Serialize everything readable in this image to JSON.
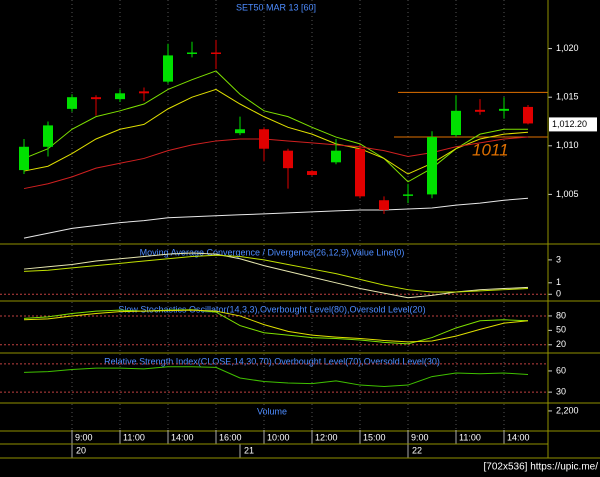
{
  "chart_data": [
    {
      "type": "candlestick",
      "title": "SET50 MAR 13  [60]",
      "open": [
        1007.5,
        1009.9,
        1013.8,
        1015.0,
        1014.8,
        1015.6,
        1016.6,
        1019.5,
        1019.6,
        1011.3,
        1011.7,
        1009.5,
        1007.4,
        1008.3,
        1009.7,
        1004.4,
        1005.0,
        1005.0,
        1011.1,
        1013.7,
        1013.6,
        1014.0
      ],
      "high": [
        1010.7,
        1012.5,
        1015.3,
        1015.2,
        1015.8,
        1016.0,
        1020.5,
        1020.7,
        1020.9,
        1013.0,
        1011.9,
        1009.7,
        1007.5,
        1010.7,
        1010.1,
        1004.8,
        1006.1,
        1011.5,
        1015.2,
        1014.8,
        1015.0,
        1014.2
      ],
      "low": [
        1007.1,
        1008.9,
        1013.5,
        1013.1,
        1014.5,
        1014.6,
        1016.4,
        1019.1,
        1017.9,
        1011.1,
        1008.4,
        1005.6,
        1006.9,
        1008.1,
        1004.6,
        1003.0,
        1004.1,
        1004.6,
        1010.9,
        1013.2,
        1012.8,
        1012.2
      ],
      "close": [
        1009.9,
        1012.1,
        1015.0,
        1014.8,
        1015.4,
        1015.4,
        1019.3,
        1019.6,
        1019.5,
        1011.7,
        1009.7,
        1007.7,
        1007.0,
        1009.5,
        1004.8,
        1003.4,
        1005.0,
        1010.9,
        1013.6,
        1013.5,
        1013.8,
        1012.3
      ],
      "up_color": "#00e000",
      "down_color": "#e00000",
      "series": [
        {
          "color": "#7ee000",
          "values": [
            1008.7,
            1009.7,
            1011.7,
            1013.0,
            1013.6,
            1014.3,
            1015.8,
            1016.8,
            1017.7,
            1015.3,
            1013.6,
            1013.0,
            1011.9,
            1010.9,
            1010.2,
            1008.7,
            1006.3,
            1007.7,
            1009.7,
            1011.2,
            1011.7,
            1011.7
          ]
        },
        {
          "color": "#e0e000",
          "values": [
            1007.4,
            1007.9,
            1009.2,
            1010.7,
            1011.7,
            1012.2,
            1013.8,
            1015.0,
            1015.8,
            1014.3,
            1013.0,
            1011.9,
            1011.2,
            1010.2,
            1009.7,
            1008.7,
            1007.1,
            1008.2,
            1009.7,
            1010.7,
            1011.2,
            1011.4
          ]
        },
        {
          "color": "#d02020",
          "values": [
            1005.6,
            1006.1,
            1006.8,
            1007.7,
            1008.2,
            1008.7,
            1009.5,
            1010.1,
            1010.5,
            1010.7,
            1010.7,
            1010.5,
            1010.3,
            1010.1,
            1009.9,
            1009.5,
            1008.9,
            1009.3,
            1009.9,
            1010.3,
            1010.7,
            1010.9
          ]
        },
        {
          "color": "#e8e8e8",
          "values": [
            1000.5,
            1001.0,
            1001.5,
            1001.8,
            1002.1,
            1002.3,
            1002.6,
            1002.7,
            1002.8,
            1002.9,
            1003.0,
            1003.1,
            1003.2,
            1003.3,
            1003.4,
            1003.4,
            1003.5,
            1003.6,
            1003.9,
            1004.1,
            1004.4,
            1004.6
          ]
        }
      ],
      "hlines": [
        1015.5,
        1010.9
      ],
      "hline_color": "#e07000",
      "annotation": "1011",
      "annotation_color": "#e07000",
      "last_price": {
        "value": 1012.2,
        "label": "1,012.20"
      },
      "ylim": [
        1000,
        1025
      ],
      "yticks": [
        {
          "value": 1005,
          "label": "1,005"
        },
        {
          "value": 1010,
          "label": "1,010"
        },
        {
          "value": 1015,
          "label": "1,015"
        },
        {
          "value": 1020,
          "label": "1,020"
        }
      ]
    },
    {
      "type": "line",
      "title": "Moving Average Convergence / Divergence(26,12,9),Value Line(0)",
      "series": [
        {
          "color": "#e8e8b0",
          "values": [
            2.2,
            2.4,
            2.6,
            2.9,
            3.1,
            3.3,
            3.5,
            3.6,
            3.5,
            3.1,
            2.5,
            2.0,
            1.5,
            1.0,
            0.5,
            0.1,
            -0.3,
            -0.1,
            0.2,
            0.4,
            0.5,
            0.6
          ]
        },
        {
          "color": "#c0e000",
          "values": [
            2.0,
            2.1,
            2.3,
            2.5,
            2.7,
            2.9,
            3.1,
            3.3,
            3.4,
            3.3,
            3.0,
            2.6,
            2.2,
            1.8,
            1.3,
            0.8,
            0.4,
            0.2,
            0.2,
            0.3,
            0.4,
            0.5
          ]
        }
      ],
      "levels": [
        0
      ],
      "level_color": "#c04040",
      "ylim": [
        -0.5,
        4.3
      ],
      "yticks": [
        0,
        1,
        3
      ]
    },
    {
      "type": "line",
      "title": "Slow Stochastics Oscillator(14,3,3),Overbought Level(80),Oversold Level(20)",
      "series": [
        {
          "color": "#7ee000",
          "values": [
            75,
            78,
            85,
            90,
            92,
            90,
            92,
            93,
            88,
            60,
            45,
            40,
            35,
            33,
            30,
            25,
            22,
            35,
            55,
            70,
            72,
            70
          ]
        },
        {
          "color": "#e0e000",
          "values": [
            72,
            74,
            80,
            85,
            89,
            90,
            91,
            92,
            90,
            80,
            62,
            48,
            40,
            36,
            33,
            29,
            26,
            28,
            38,
            52,
            65,
            70
          ]
        }
      ],
      "levels": [
        80,
        20
      ],
      "level_color": "#c04040",
      "ylim": [
        5,
        109
      ],
      "yticks": [
        20,
        50,
        80
      ]
    },
    {
      "type": "line",
      "title": "Relative Strength Index(CLOSE,14,30,70),Overbought Level(70),Oversold Level(30)",
      "series": [
        {
          "color": "#40c000",
          "values": [
            58,
            59,
            62,
            64,
            64,
            63,
            66,
            66,
            65,
            50,
            45,
            43,
            42,
            46,
            40,
            38,
            40,
            52,
            57,
            56,
            57,
            55
          ]
        }
      ],
      "levels": [
        70,
        30
      ],
      "level_color": "#c04040",
      "ylim": [
        16,
        84
      ],
      "yticks": [
        30,
        60
      ]
    },
    {
      "type": "bar",
      "title": "Volume",
      "ylim": [
        0,
        3000
      ],
      "yticks": [
        {
          "value": 2200,
          "label": "2,200"
        }
      ],
      "categories": [
        null,
        null,
        "9:00",
        null,
        "11:00",
        null,
        "14:00",
        null,
        "16:00",
        null,
        "10:00",
        null,
        "12:00",
        null,
        "15:00",
        null,
        "9:00",
        null,
        "11:00",
        null,
        "14:00",
        null
      ],
      "day_categories": [
        null,
        null,
        "20",
        null,
        null,
        null,
        null,
        null,
        null,
        "21",
        null,
        null,
        null,
        null,
        null,
        null,
        "22",
        null,
        null,
        null,
        null,
        null
      ]
    }
  ],
  "watermark": "[702x536] https://upic.me/"
}
